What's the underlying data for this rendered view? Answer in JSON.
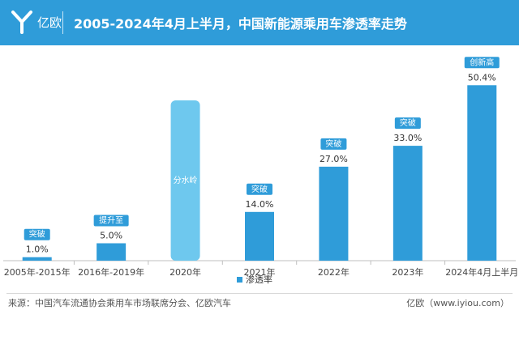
{
  "header": {
    "brand": "亿欧",
    "title": "2005-2024年4月上半月，中国新能源乘用车渗透率走势"
  },
  "chart_data": {
    "type": "bar",
    "title": "2005-2024年4月上半月，中国新能源乘用车渗透率走势",
    "categories": [
      "2005年-2015年",
      "2016年-2019年",
      "2020年",
      "2021年",
      "2022年",
      "2023年",
      "2024年4月上半月"
    ],
    "series": [
      {
        "name": "渗透率",
        "values": [
          1.0,
          5.0,
          null,
          14.0,
          27.0,
          33.0,
          50.4
        ],
        "labels": [
          "1.0%",
          "5.0%",
          "",
          "14.0%",
          "27.0%",
          "33.0%",
          "50.4%"
        ],
        "tags": [
          "突破",
          "提升至",
          "分水岭",
          "突破",
          "突破",
          "突破",
          "创新高"
        ]
      }
    ],
    "ylim": [
      0,
      55
    ],
    "grid": false,
    "legend": "bottom-center",
    "watershed": {
      "category": "2020年",
      "label": "分水岭"
    },
    "colors": {
      "bar": "#2f9cd9",
      "watershed": "#6ec8ee",
      "tag": "#2f9cd9",
      "header": "#2f9cd9"
    }
  },
  "footer": {
    "source": "来源：中国汽车流通协会乘用车市场联席分会、亿欧汽车",
    "site": "亿欧（www.iyiou.com）"
  }
}
